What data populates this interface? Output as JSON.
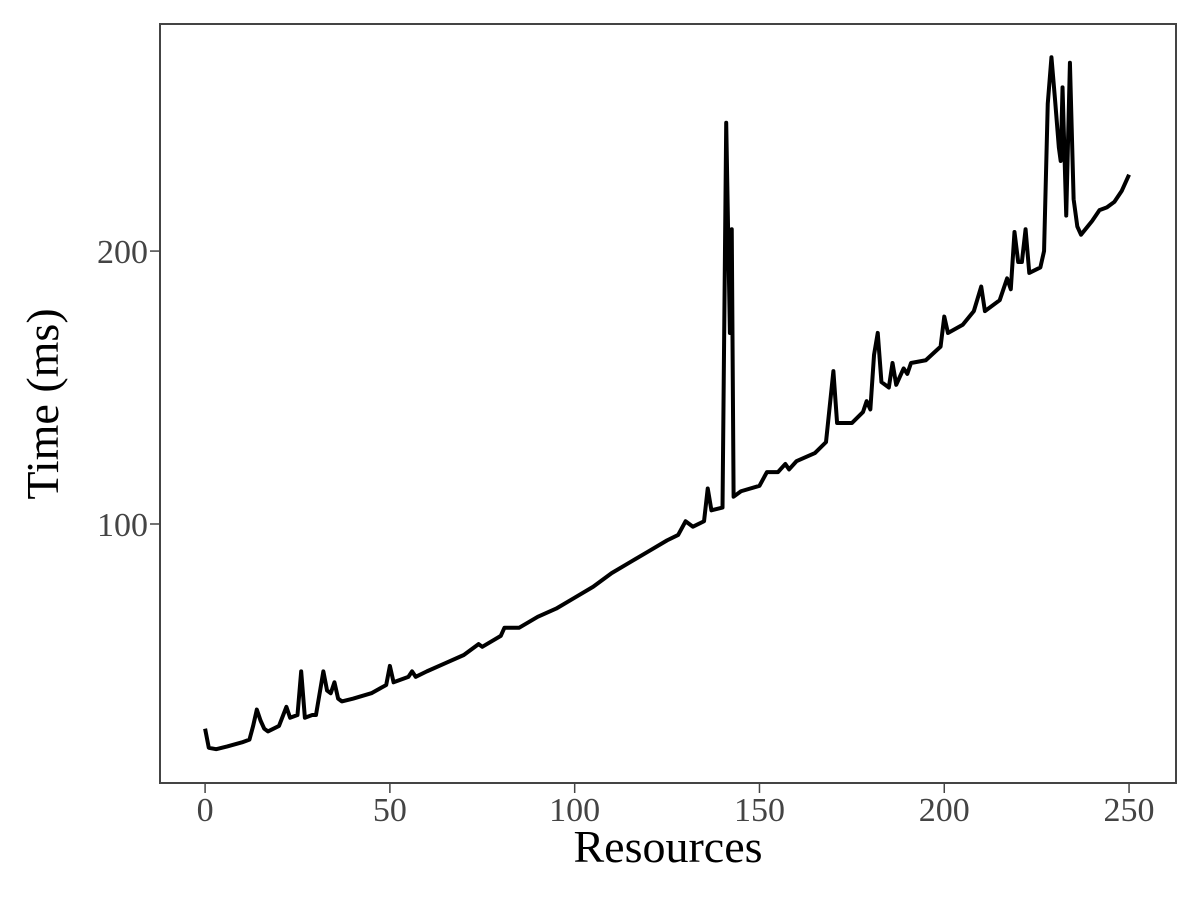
{
  "chart_data": {
    "type": "line",
    "xlabel": "Resources",
    "ylabel": "Time (ms)",
    "x": [
      0,
      1,
      3,
      6,
      10,
      12,
      13,
      14,
      15,
      16,
      17,
      20,
      22,
      23,
      25,
      26,
      27,
      29,
      30,
      32,
      33,
      34,
      35,
      36,
      37,
      40,
      45,
      49,
      50,
      51,
      55,
      56,
      57,
      60,
      65,
      70,
      74,
      75,
      80,
      81,
      85,
      90,
      95,
      100,
      105,
      110,
      115,
      120,
      125,
      128,
      130,
      132,
      135,
      136,
      137,
      140,
      141,
      142,
      142.5,
      143,
      145,
      150,
      152,
      155,
      157,
      158,
      160,
      165,
      168,
      170,
      171,
      175,
      178,
      179,
      180,
      181,
      182,
      183,
      185,
      186,
      187,
      189,
      190,
      191,
      195,
      199,
      200,
      201,
      205,
      208,
      210,
      211,
      215,
      217,
      218,
      219,
      220,
      221,
      222,
      223,
      226,
      227,
      228,
      229,
      230,
      231,
      231.5,
      232,
      233,
      234,
      235,
      236,
      237,
      240,
      242,
      244,
      246,
      248,
      250
    ],
    "series": [
      {
        "name": "Time",
        "color": "#000000",
        "values": [
          25,
          18,
          17.5,
          18.5,
          20,
          21,
          26,
          32,
          28,
          25,
          24,
          26,
          33,
          29,
          30,
          46,
          29,
          30,
          30,
          46,
          39,
          38,
          42,
          36,
          35,
          36,
          38,
          41,
          48,
          42,
          44,
          46,
          44,
          46,
          49,
          52,
          56,
          55,
          59,
          62,
          62,
          66,
          69,
          73,
          77,
          82,
          86,
          90,
          94,
          96,
          101,
          99,
          101,
          113,
          105,
          106,
          247,
          170,
          208,
          110,
          112,
          114,
          119,
          119,
          122,
          120,
          123,
          126,
          130,
          156,
          137,
          137,
          141,
          145,
          142,
          162,
          170,
          152,
          150,
          159,
          151,
          157,
          155,
          159,
          160,
          165,
          176,
          170,
          173,
          178,
          187,
          178,
          182,
          190,
          186,
          207,
          196,
          196,
          208,
          192,
          194,
          200,
          254,
          271,
          255,
          238,
          233,
          260,
          213,
          269,
          219,
          209,
          206,
          211,
          215,
          216,
          218,
          222,
          228
        ]
      }
    ],
    "xlim": [
      -12.2,
      262.7
    ],
    "ylim": [
      5.1,
      283.2
    ],
    "xticks": [
      0,
      50,
      100,
      150,
      200,
      250
    ],
    "yticks": [
      100,
      200
    ]
  }
}
